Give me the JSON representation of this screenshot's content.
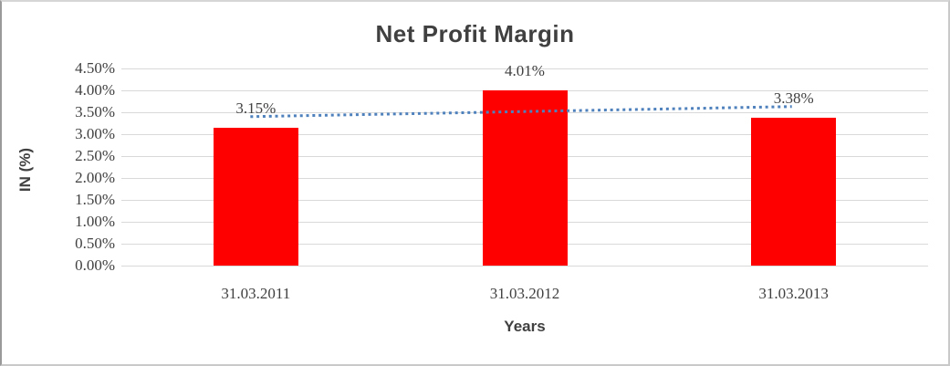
{
  "chart": {
    "title": "Net Profit Margin",
    "y_axis_title": "IN (%)",
    "x_axis_title": "Years",
    "colors": {
      "bar": "#FF0000",
      "trendline": "#4F81BD",
      "gridline": "#D9D9D9",
      "text": "#404040",
      "background": "#FFFFFF"
    }
  },
  "chart_data": {
    "type": "bar",
    "title": "Net Profit Margin",
    "categories": [
      "31.03.2011",
      "31.03.2012",
      "31.03.2013"
    ],
    "values": [
      3.15,
      4.01,
      3.38
    ],
    "data_labels": [
      "3.15%",
      "4.01%",
      "3.38%"
    ],
    "xlabel": "Years",
    "ylabel": "IN (%)",
    "ylim": [
      0,
      4.5
    ],
    "y_tick_step": 0.5,
    "y_tick_labels": [
      "0.00%",
      "0.50%",
      "1.00%",
      "1.50%",
      "2.00%",
      "2.50%",
      "3.00%",
      "3.50%",
      "4.00%",
      "4.50%"
    ],
    "grid": true,
    "legend": false,
    "trendline": {
      "type": "linear",
      "style": "dotted",
      "endpoint_values": [
        3.4,
        3.63
      ]
    }
  }
}
